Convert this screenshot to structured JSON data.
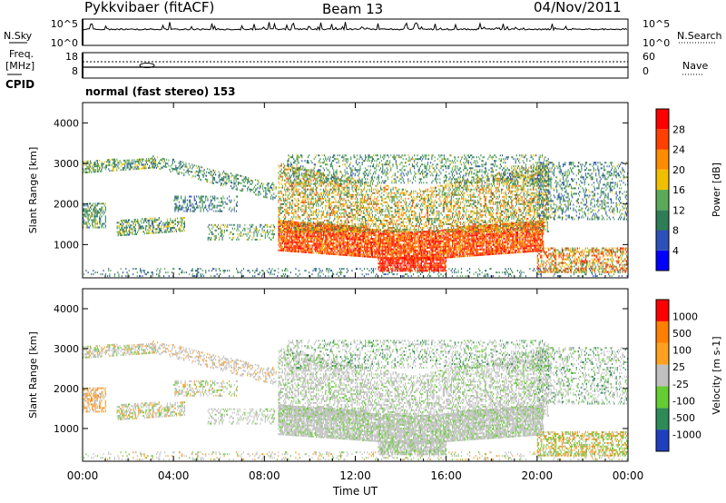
{
  "header": {
    "station": "Pykkvibaer (fitACF)",
    "beam": "Beam 13",
    "date": "04/Nov/2011"
  },
  "side_labels": {
    "nsky": "N.Sky",
    "nsearch": "N.Search",
    "freq": "Freq.",
    "freq_unit": "[MHz]",
    "nave": "Nave",
    "cpid": "CPID"
  },
  "cpid_text": "normal (fast stereo) 153",
  "chart_data": [
    {
      "type": "line",
      "panel": "noise",
      "left_ticks": [
        "10^5",
        "10^0"
      ],
      "right_ticks": [
        "10^5",
        "10^0"
      ]
    },
    {
      "type": "line",
      "panel": "frequency",
      "left_ticks": [
        "18",
        "8"
      ],
      "right_ticks": [
        "60",
        "0"
      ]
    },
    {
      "type": "heatmap",
      "panel": "power",
      "ylabel": "Slant Range [km]",
      "yticks": [
        1000,
        2000,
        3000,
        4000
      ],
      "ylim": [
        180,
        4500
      ],
      "colorbar_label": "Power [dB]",
      "colorbar_ticks": [
        4,
        8,
        12,
        16,
        20,
        24,
        28
      ],
      "colorbar_range": [
        0,
        30
      ],
      "colors": [
        "#0000ff",
        "#2c50b8",
        "#2e7d55",
        "#5aaa5a",
        "#f0c000",
        "#ff8c00",
        "#ff4000",
        "#ff0000"
      ]
    },
    {
      "type": "heatmap",
      "panel": "velocity",
      "ylabel": "Slant Range [km]",
      "yticks": [
        1000,
        2000,
        3000,
        4000
      ],
      "ylim": [
        180,
        4500
      ],
      "colorbar_label": "Velocity [m s-1]",
      "colorbar_ticks": [
        "1000",
        "500",
        "100",
        "25",
        "-25",
        "-100",
        "-500",
        "-1000"
      ],
      "colors": [
        "#1f3fbf",
        "#2e8b57",
        "#66cc33",
        "#c0c0c0",
        "#ffa020",
        "#ff7f00",
        "#ff0000"
      ]
    }
  ],
  "xaxis": {
    "label": "Time UT",
    "ticks": [
      "00:00",
      "04:00",
      "08:00",
      "12:00",
      "16:00",
      "20:00",
      "00:00"
    ]
  }
}
